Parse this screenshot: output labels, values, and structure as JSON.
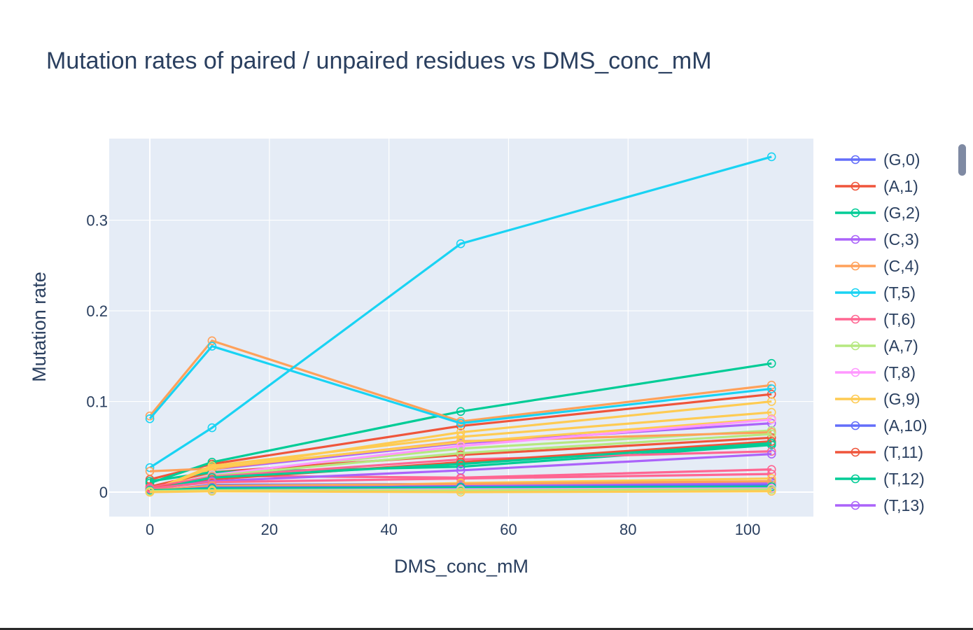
{
  "chart_data": {
    "type": "line",
    "title": "Mutation rates of paired / unpaired residues vs DMS_conc_mM",
    "xlabel": "DMS_conc_mM",
    "ylabel": "Mutation rate",
    "xlim": [
      -6.8,
      111
    ],
    "ylim": [
      -0.027,
      0.39
    ],
    "xticks": [
      0,
      20,
      40,
      60,
      80,
      100
    ],
    "yticks": [
      0,
      0.1,
      0.2,
      0.3
    ],
    "ytick_labels": [
      "0",
      "0.1",
      "0.2",
      "0.3"
    ],
    "grid": true,
    "legend_placement": "right",
    "plot_background": "#e5ecf6",
    "x": [
      0,
      10.4,
      52,
      104
    ],
    "series": [
      {
        "name": "(G,0)",
        "color": "#636efa",
        "values": [
          0.002,
          0.006,
          0.007,
          0.008
        ]
      },
      {
        "name": "(A,1)",
        "color": "#ef553b",
        "values": [
          0.014,
          0.031,
          0.073,
          0.108
        ]
      },
      {
        "name": "(G,2)",
        "color": "#00cc96",
        "values": [
          0.01,
          0.033,
          0.089,
          0.142
        ]
      },
      {
        "name": "(C,3)",
        "color": "#ab63fa",
        "values": [
          0.004,
          0.025,
          0.054,
          0.076
        ]
      },
      {
        "name": "(C,4)",
        "color": "#ffa15a",
        "values": [
          0.084,
          0.167,
          0.078,
          0.118
        ]
      },
      {
        "name": "(T,5)",
        "color": "#19d3f3",
        "values": [
          0.081,
          0.161,
          0.076,
          0.114
        ]
      },
      {
        "name": "(T,6)",
        "color": "#ff6692",
        "values": [
          0.003,
          0.018,
          0.016,
          0.025
        ]
      },
      {
        "name": "(A,7)",
        "color": "#b6e880",
        "values": [
          0.001,
          0.02,
          0.048,
          0.068
        ]
      },
      {
        "name": "(T,8)",
        "color": "#ff97ff",
        "values": [
          0.001,
          0.003,
          0.004,
          0.005
        ]
      },
      {
        "name": "(G,9)",
        "color": "#fecb52",
        "values": [
          0.0,
          0.025,
          0.066,
          0.1
        ]
      },
      {
        "name": "(A,10)",
        "color": "#636efa",
        "values": [
          0.001,
          0.008,
          0.009,
          0.011
        ]
      },
      {
        "name": "(T,11)",
        "color": "#ef553b",
        "values": [
          0.006,
          0.022,
          0.041,
          0.06
        ]
      },
      {
        "name": "(T,12)",
        "color": "#00cc96",
        "values": [
          0.012,
          0.022,
          0.028,
          0.052
        ]
      },
      {
        "name": "(T,13)",
        "color": "#ab63fa",
        "values": [
          0.002,
          0.006,
          0.008,
          0.01
        ]
      },
      {
        "name": "",
        "color": "#19d3f3",
        "values": [
          0.027,
          0.071,
          0.274,
          0.37
        ]
      },
      {
        "name": "",
        "color": "#ffa15a",
        "values": [
          0.023,
          0.026,
          0.056,
          0.066
        ]
      },
      {
        "name": "",
        "color": "#fecb52",
        "values": [
          0.001,
          0.029,
          0.061,
          0.088
        ]
      },
      {
        "name": "",
        "color": "#fecb52",
        "values": [
          0.001,
          0.027,
          0.055,
          0.081
        ]
      },
      {
        "name": "",
        "color": "#ff97ff",
        "values": [
          0.002,
          0.019,
          0.051,
          0.08
        ]
      },
      {
        "name": "",
        "color": "#b6e880",
        "values": [
          0.001,
          0.018,
          0.043,
          0.064
        ]
      },
      {
        "name": "",
        "color": "#ff6692",
        "values": [
          0.005,
          0.017,
          0.036,
          0.045
        ]
      },
      {
        "name": "",
        "color": "#ef553b",
        "values": [
          0.004,
          0.014,
          0.033,
          0.056
        ]
      },
      {
        "name": "",
        "color": "#00cc96",
        "values": [
          0.002,
          0.016,
          0.031,
          0.054
        ]
      },
      {
        "name": "",
        "color": "#ab63fa",
        "values": [
          0.003,
          0.012,
          0.024,
          0.042
        ]
      },
      {
        "name": "",
        "color": "#ff6692",
        "values": [
          0.004,
          0.011,
          0.015,
          0.02
        ]
      },
      {
        "name": "",
        "color": "#fecb52",
        "values": [
          0.0,
          0.004,
          0.01,
          0.015
        ]
      },
      {
        "name": "",
        "color": "#ffa15a",
        "values": [
          0.002,
          0.007,
          0.009,
          0.012
        ]
      },
      {
        "name": "",
        "color": "#636efa",
        "values": [
          0.001,
          0.005,
          0.006,
          0.004
        ]
      },
      {
        "name": "",
        "color": "#00cc96",
        "values": [
          0.002,
          0.004,
          0.005,
          0.006
        ]
      },
      {
        "name": "",
        "color": "#ff97ff",
        "values": [
          0.001,
          0.002,
          0.003,
          0.004
        ]
      },
      {
        "name": "",
        "color": "#b6e880",
        "values": [
          0.001,
          0.002,
          0.002,
          0.003
        ]
      },
      {
        "name": "",
        "color": "#fecb52",
        "values": [
          0.0,
          0.001,
          0.0,
          0.001
        ]
      }
    ]
  }
}
